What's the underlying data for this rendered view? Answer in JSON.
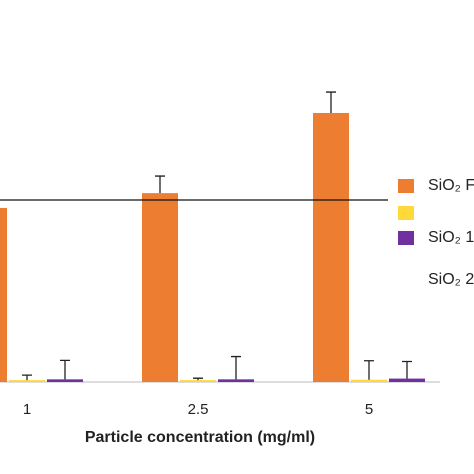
{
  "chart_data": {
    "type": "bar",
    "x_label": "Particle concentration (mg/ml)",
    "categories": [
      "1",
      "2.5",
      "5"
    ],
    "series": [
      {
        "name": "SiO₂ F",
        "color": "#ed7d31",
        "values": [
          45.8,
          49.7,
          70.8
        ],
        "errors": [
          4,
          4.5,
          5.5
        ]
      },
      {
        "color": "#ffd83a",
        "values": [
          0.5,
          0.5,
          0.6
        ],
        "errors": [
          1.3,
          0.5,
          5
        ]
      },
      {
        "name": "SiO₂ 1",
        "color": "#7030a0",
        "values": [
          0.7,
          0.7,
          0.9
        ],
        "errors": [
          5,
          6,
          4.5
        ]
      }
    ],
    "legend_extra_text": "SiO₂ 2",
    "reference_line": 47.9,
    "ylim": [
      0,
      100
    ]
  }
}
